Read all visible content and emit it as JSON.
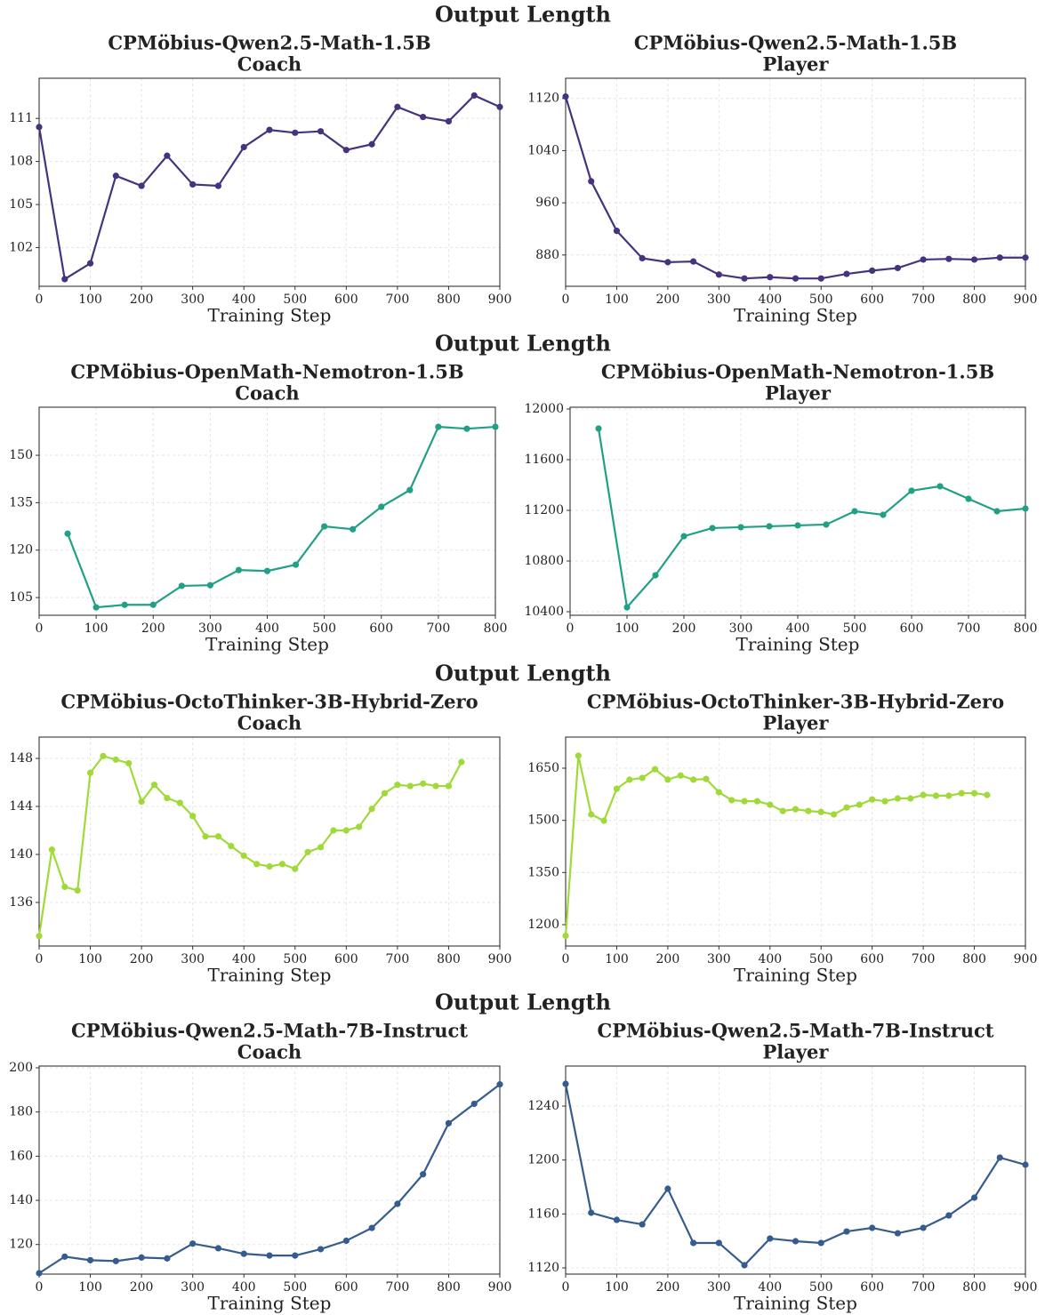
{
  "row_titles": [
    "Output Length",
    "Output Length",
    "Output Length",
    "Output Length"
  ],
  "chart_data": [
    {
      "type": "line",
      "title": "CPMöbius-Qwen2.5-Math-1.5B",
      "subtitle": "Coach",
      "xlabel": "Training Step",
      "color": "#46337e",
      "x": [
        0,
        50,
        100,
        150,
        200,
        250,
        300,
        350,
        400,
        450,
        500,
        550,
        600,
        650,
        700,
        750,
        800,
        850,
        900
      ],
      "values": [
        110.4,
        99.8,
        100.9,
        107.0,
        106.3,
        108.4,
        106.4,
        106.3,
        109.0,
        110.2,
        110.0,
        110.1,
        108.8,
        109.2,
        111.8,
        111.1,
        110.8,
        112.6,
        111.8
      ],
      "xlim": [
        0,
        900
      ],
      "xticks": [
        0,
        100,
        200,
        300,
        400,
        500,
        600,
        700,
        800,
        900
      ],
      "ylim": [
        99.3,
        113.8
      ],
      "yticks": [
        102,
        105,
        108,
        111
      ],
      "grid": true
    },
    {
      "type": "line",
      "title": "CPMöbius-Qwen2.5-Math-1.5B",
      "subtitle": "Player",
      "xlabel": "Training Step",
      "color": "#46337e",
      "x": [
        0,
        50,
        100,
        150,
        200,
        250,
        300,
        350,
        400,
        450,
        500,
        550,
        600,
        650,
        700,
        750,
        800,
        850,
        900
      ],
      "values": [
        1123,
        993,
        917,
        875,
        869,
        870,
        850,
        844,
        846,
        844,
        844,
        851,
        856,
        860,
        873,
        874,
        873,
        876,
        876
      ],
      "xlim": [
        0,
        900
      ],
      "xticks": [
        0,
        100,
        200,
        300,
        400,
        500,
        600,
        700,
        800,
        900
      ],
      "ylim": [
        832,
        1151
      ],
      "yticks": [
        880,
        960,
        1040,
        1120
      ],
      "grid": true
    },
    {
      "type": "line",
      "title": "CPMöbius-OpenMath-Nemotron-1.5B",
      "subtitle": "Coach",
      "xlabel": "Training Step",
      "color": "#22a085",
      "x": [
        50,
        100,
        150,
        200,
        250,
        300,
        350,
        400,
        450,
        500,
        550,
        600,
        650,
        700,
        750,
        800
      ],
      "values": [
        125.2,
        101.9,
        102.7,
        102.7,
        108.7,
        108.9,
        113.7,
        113.4,
        115.4,
        127.5,
        126.6,
        133.7,
        139.0,
        159.0,
        158.4,
        159.0
      ],
      "xlim": [
        0,
        800
      ],
      "xticks": [
        0,
        100,
        200,
        300,
        400,
        500,
        600,
        700,
        800
      ],
      "ylim": [
        99.4,
        165.2
      ],
      "yticks": [
        105,
        120,
        135,
        150
      ],
      "grid": true
    },
    {
      "type": "line",
      "title": "CPMöbius-OpenMath-Nemotron-1.5B",
      "subtitle": "Player",
      "xlabel": "Training Step",
      "color": "#22a085",
      "x": [
        50,
        100,
        150,
        200,
        250,
        300,
        350,
        400,
        450,
        500,
        550,
        600,
        650,
        700,
        750,
        800
      ],
      "values": [
        11846,
        10435,
        10688,
        10996,
        11060,
        11067,
        11074,
        11081,
        11088,
        11193,
        11165,
        11355,
        11390,
        11291,
        11193,
        11214
      ],
      "xlim": [
        0,
        800
      ],
      "xticks": [
        0,
        100,
        200,
        300,
        400,
        500,
        600,
        700,
        800
      ],
      "ylim": [
        10372,
        12014
      ],
      "yticks": [
        10400,
        10800,
        11200,
        11600,
        12000
      ],
      "grid": true
    },
    {
      "type": "line",
      "title": "CPMöbius-OctoThinker-3B-Hybrid-Zero",
      "subtitle": "Coach",
      "xlabel": "Training Step",
      "color": "#a0da39",
      "x": [
        0,
        25,
        50,
        75,
        100,
        125,
        150,
        175,
        200,
        225,
        250,
        275,
        300,
        325,
        350,
        375,
        400,
        425,
        450,
        475,
        500,
        525,
        550,
        575,
        600,
        625,
        650,
        675,
        700,
        725,
        750,
        775,
        800,
        825
      ],
      "values": [
        133.2,
        140.4,
        137.3,
        137.0,
        146.8,
        148.2,
        147.9,
        147.6,
        144.4,
        145.8,
        144.7,
        144.3,
        143.2,
        141.5,
        141.5,
        140.7,
        139.9,
        139.2,
        139.0,
        139.2,
        138.8,
        140.2,
        140.6,
        142.0,
        142.0,
        142.3,
        143.8,
        145.1,
        145.8,
        145.7,
        145.9,
        145.7,
        145.7,
        147.7
      ],
      "xlim": [
        0,
        900
      ],
      "xticks": [
        0,
        100,
        200,
        300,
        400,
        500,
        600,
        700,
        800,
        900
      ],
      "ylim": [
        132.37,
        149.78
      ],
      "yticks": [
        136,
        140,
        144,
        148
      ],
      "grid": true
    },
    {
      "type": "line",
      "title": "CPMöbius-OctoThinker-3B-Hybrid-Zero",
      "subtitle": "Player",
      "xlabel": "Training Step",
      "color": "#a0da39",
      "x": [
        0,
        25,
        50,
        75,
        100,
        125,
        150,
        175,
        200,
        225,
        250,
        275,
        300,
        325,
        350,
        375,
        400,
        425,
        450,
        475,
        500,
        525,
        550,
        575,
        600,
        625,
        650,
        675,
        700,
        725,
        750,
        775,
        800,
        825
      ],
      "values": [
        1168,
        1686,
        1517,
        1499,
        1591,
        1617,
        1622,
        1647,
        1617,
        1629,
        1617,
        1619,
        1581,
        1558,
        1555,
        1555,
        1545,
        1527,
        1532,
        1527,
        1524,
        1517,
        1537,
        1545,
        1560,
        1555,
        1563,
        1563,
        1573,
        1571,
        1571,
        1578,
        1578,
        1573
      ],
      "xlim": [
        0,
        900
      ],
      "xticks": [
        0,
        100,
        200,
        300,
        400,
        500,
        600,
        700,
        800,
        900
      ],
      "ylim": [
        1138.6,
        1739.5
      ],
      "yticks": [
        1200,
        1350,
        1500,
        1650
      ],
      "grid": true
    },
    {
      "type": "line",
      "title": "CPMöbius-Qwen2.5-Math-7B-Instruct",
      "subtitle": "Coach",
      "xlabel": "Training Step",
      "color": "#365c8d",
      "x": [
        0,
        50,
        100,
        150,
        200,
        250,
        300,
        350,
        400,
        450,
        500,
        550,
        600,
        650,
        700,
        750,
        800,
        850,
        900
      ],
      "values": [
        107.0,
        114.5,
        112.9,
        112.5,
        114.1,
        113.7,
        120.4,
        118.3,
        115.8,
        115.0,
        115.0,
        117.9,
        121.7,
        127.5,
        138.4,
        151.8,
        174.9,
        183.7,
        192.5
      ],
      "xlim": [
        0,
        900
      ],
      "xticks": [
        0,
        100,
        200,
        300,
        400,
        500,
        600,
        700,
        800,
        900
      ],
      "ylim": [
        106.6,
        200.8
      ],
      "yticks": [
        120,
        140,
        160,
        180,
        200
      ],
      "grid": true
    },
    {
      "type": "line",
      "title": "CPMöbius-Qwen2.5-Math-7B-Instruct",
      "subtitle": "Player",
      "xlabel": "Training Step",
      "color": "#365c8d",
      "x": [
        0,
        50,
        100,
        150,
        200,
        250,
        300,
        350,
        400,
        450,
        500,
        550,
        600,
        650,
        700,
        750,
        800,
        850,
        900
      ],
      "values": [
        1256.5,
        1160.9,
        1155.6,
        1152.3,
        1178.7,
        1138.5,
        1138.5,
        1122.0,
        1141.8,
        1139.8,
        1138.5,
        1147.0,
        1149.7,
        1145.7,
        1149.7,
        1158.9,
        1172.1,
        1201.8,
        1196.5
      ],
      "xlim": [
        0,
        900
      ],
      "xticks": [
        0,
        100,
        200,
        300,
        400,
        500,
        600,
        700,
        800,
        900
      ],
      "ylim": [
        1115.4,
        1269.7
      ],
      "yticks": [
        1120,
        1160,
        1200,
        1240
      ],
      "grid": true
    }
  ]
}
